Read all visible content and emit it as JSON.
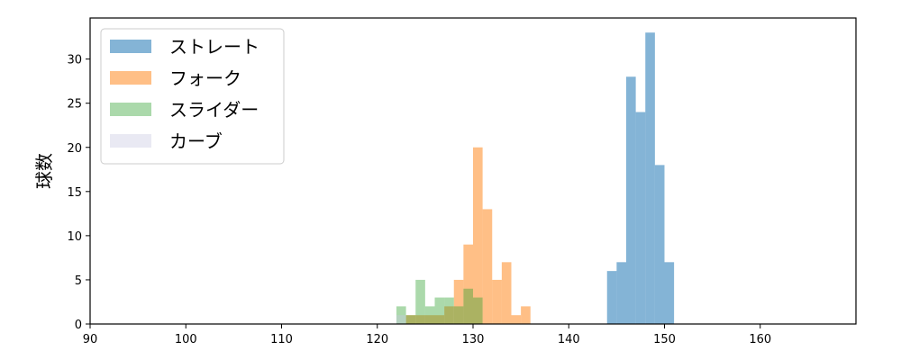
{
  "chart_data": {
    "type": "bar",
    "subtype": "histogram",
    "ylabel": "球数",
    "xlim": [
      90,
      170
    ],
    "ylim": [
      0,
      34.65
    ],
    "x_ticks": [
      90,
      100,
      110,
      120,
      130,
      140,
      150,
      160
    ],
    "y_ticks": [
      0,
      5,
      10,
      15,
      20,
      25,
      30
    ],
    "grid": false,
    "legend": {
      "placement": "top-left",
      "entries": [
        "ストレート",
        "フォーク",
        "スライダー",
        "カーブ"
      ]
    },
    "series": [
      {
        "name": "ストレート",
        "color": "#1f77b4",
        "opacity": 0.55,
        "bins": [
          {
            "x0": 144.0,
            "x1": 145.0,
            "count": 6
          },
          {
            "x0": 145.0,
            "x1": 146.0,
            "count": 7
          },
          {
            "x0": 146.0,
            "x1": 147.0,
            "count": 28
          },
          {
            "x0": 147.0,
            "x1": 148.0,
            "count": 24
          },
          {
            "x0": 148.0,
            "x1": 149.0,
            "count": 33
          },
          {
            "x0": 149.0,
            "x1": 150.0,
            "count": 18
          },
          {
            "x0": 150.0,
            "x1": 151.0,
            "count": 7
          }
        ]
      },
      {
        "name": "フォーク",
        "color": "#ff7f0e",
        "opacity": 0.5,
        "bins": [
          {
            "x0": 123.0,
            "x1": 124.0,
            "count": 1
          },
          {
            "x0": 124.0,
            "x1": 125.0,
            "count": 1
          },
          {
            "x0": 125.0,
            "x1": 126.0,
            "count": 1
          },
          {
            "x0": 126.0,
            "x1": 127.0,
            "count": 1
          },
          {
            "x0": 127.0,
            "x1": 128.0,
            "count": 2
          },
          {
            "x0": 128.0,
            "x1": 129.0,
            "count": 5
          },
          {
            "x0": 129.0,
            "x1": 130.0,
            "count": 9
          },
          {
            "x0": 130.0,
            "x1": 131.0,
            "count": 20
          },
          {
            "x0": 131.0,
            "x1": 132.0,
            "count": 13
          },
          {
            "x0": 132.0,
            "x1": 133.0,
            "count": 5
          },
          {
            "x0": 133.0,
            "x1": 134.0,
            "count": 7
          },
          {
            "x0": 134.0,
            "x1": 135.0,
            "count": 1
          },
          {
            "x0": 135.0,
            "x1": 136.0,
            "count": 2
          }
        ]
      },
      {
        "name": "スライダー",
        "color": "#2ca02c",
        "opacity": 0.4,
        "bins": [
          {
            "x0": 122.0,
            "x1": 123.0,
            "count": 2
          },
          {
            "x0": 123.0,
            "x1": 124.0,
            "count": 1
          },
          {
            "x0": 124.0,
            "x1": 125.0,
            "count": 5
          },
          {
            "x0": 125.0,
            "x1": 126.0,
            "count": 2
          },
          {
            "x0": 126.0,
            "x1": 127.0,
            "count": 3
          },
          {
            "x0": 127.0,
            "x1": 128.0,
            "count": 3
          },
          {
            "x0": 128.0,
            "x1": 129.0,
            "count": 2
          },
          {
            "x0": 129.0,
            "x1": 130.0,
            "count": 4
          },
          {
            "x0": 130.0,
            "x1": 131.0,
            "count": 3
          }
        ]
      },
      {
        "name": "カーブ",
        "color": "#c8c8e0",
        "opacity": 0.4,
        "bins": [
          {
            "x0": 122.0,
            "x1": 123.0,
            "count": 1
          }
        ]
      }
    ]
  }
}
